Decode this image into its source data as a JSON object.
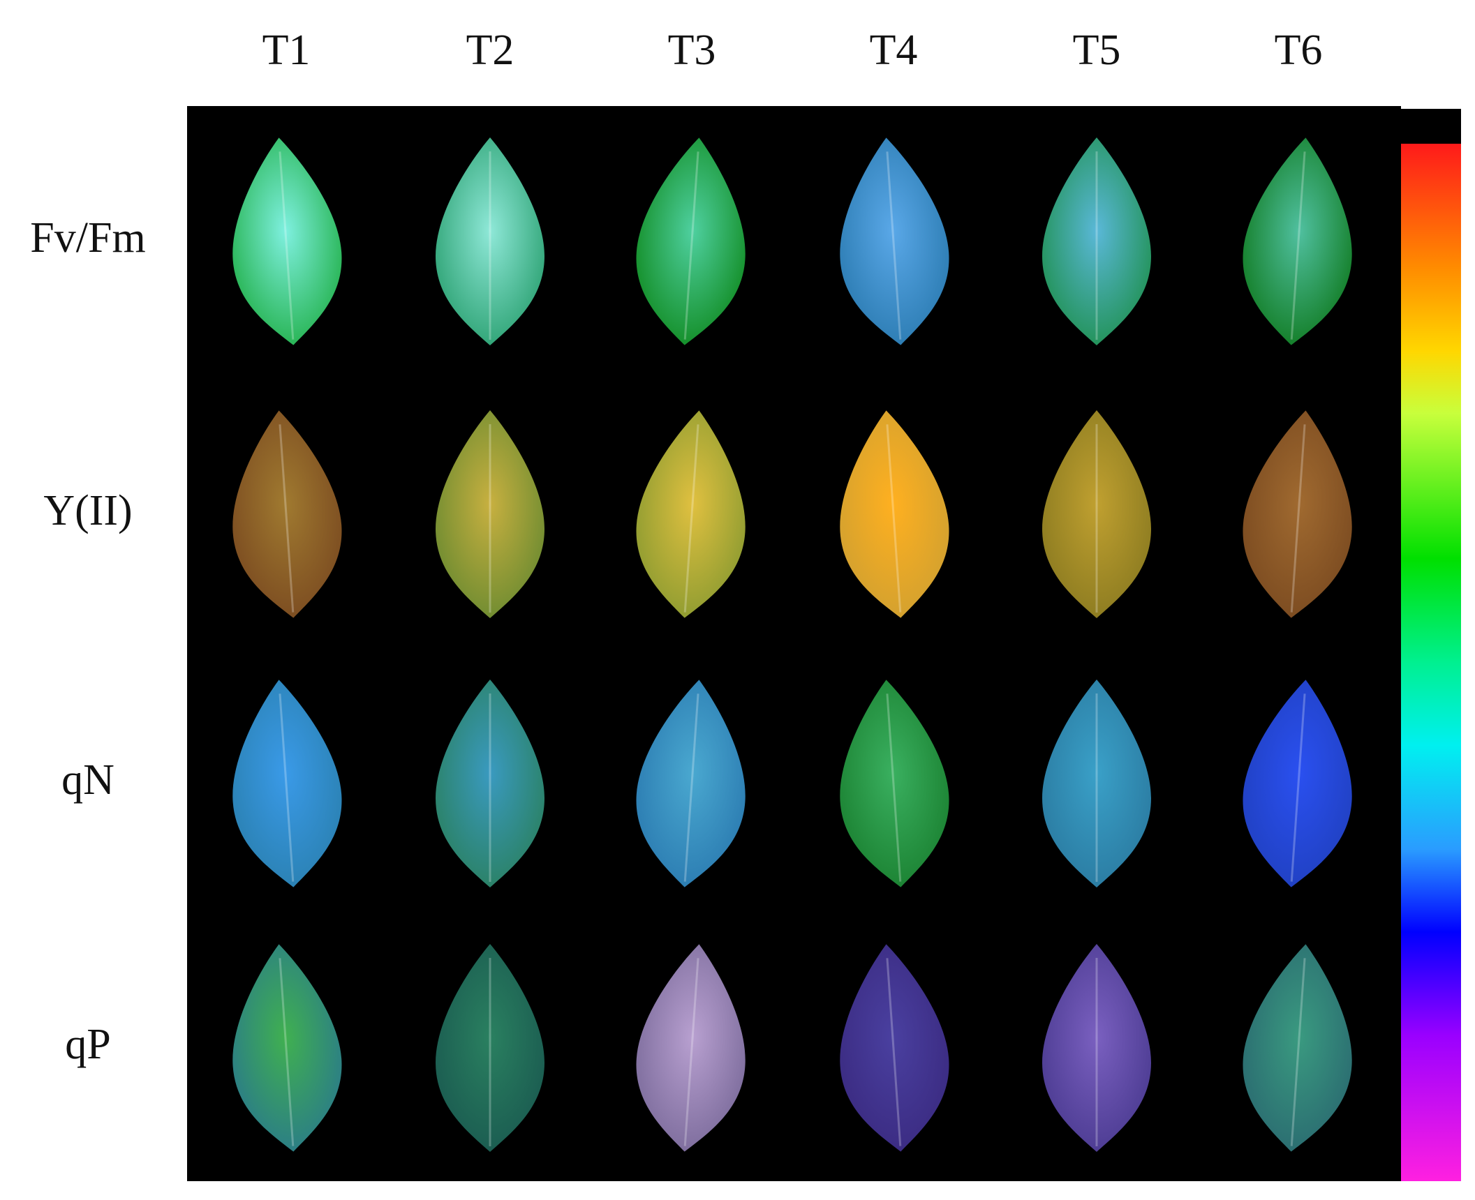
{
  "columns": [
    "T1",
    "T2",
    "T3",
    "T4",
    "T5",
    "T6"
  ],
  "rows": [
    "Fv/Fm",
    "Y(II)",
    "qN",
    "qP"
  ]
}
